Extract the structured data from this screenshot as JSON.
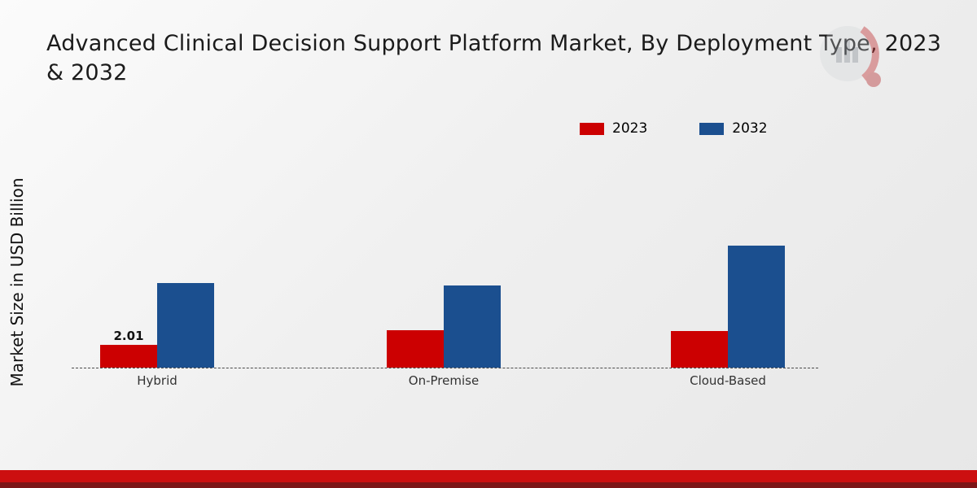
{
  "title": "Advanced Clinical Decision Support Platform Market, By Deployment Type, 2023 & 2032",
  "y_axis_label": "Market Size in USD Billion",
  "colors": {
    "series_2023": "#cc0001",
    "series_2032": "#1b4f8f",
    "footer_band": "#cc0f10",
    "footer_band_dark": "#7d1517",
    "background": "#ededed"
  },
  "chart_data": {
    "type": "bar",
    "categories": [
      "Hybrid",
      "On-Premise",
      "Cloud-Based"
    ],
    "series": [
      {
        "name": "2023",
        "color": "#cc0001",
        "values": [
          2.01,
          3.3,
          3.2
        ]
      },
      {
        "name": "2032",
        "color": "#1b4f8f",
        "values": [
          7.4,
          7.2,
          10.7
        ]
      }
    ],
    "title": "Advanced Clinical Decision Support Platform Market, By Deployment Type, 2023 & 2032",
    "xlabel": "",
    "ylabel": "Market Size in USD Billion",
    "ylim": [
      0,
      12
    ],
    "grid": false,
    "baseline_style": "dashed",
    "legend_position": "top-right",
    "annotations": [
      {
        "category": "Hybrid",
        "series": "2023",
        "text": "2.01",
        "value": 2.01
      }
    ]
  }
}
